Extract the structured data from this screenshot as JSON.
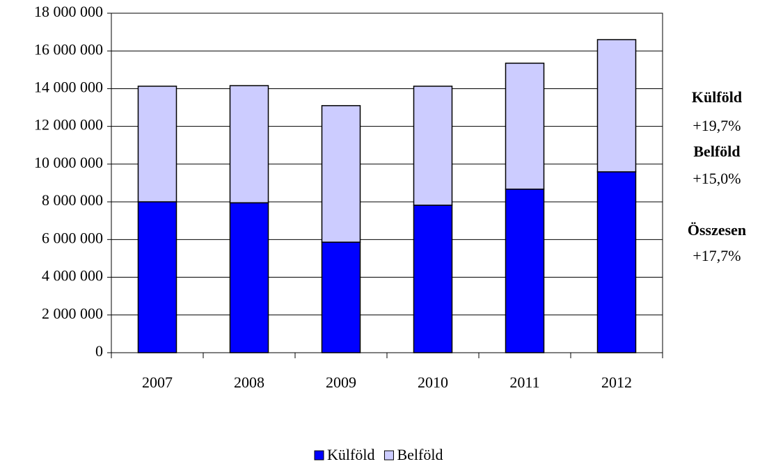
{
  "chart_data": {
    "type": "stacked_bar",
    "categories": [
      "2007",
      "2008",
      "2009",
      "2010",
      "2011",
      "2012"
    ],
    "series": [
      {
        "name": "Külföld",
        "color": "#0000ff",
        "values": [
          8000000,
          7950000,
          5860000,
          7820000,
          8670000,
          9590000
        ]
      },
      {
        "name": "Belföld",
        "color": "#ccccff",
        "values": [
          6130000,
          6210000,
          7240000,
          6310000,
          6680000,
          7010000
        ]
      }
    ],
    "ylim": [
      0,
      18000000
    ],
    "yticks": [
      0,
      {
        "value": 2000000,
        "label": "2 000 000"
      },
      {
        "value": 4000000,
        "label": "4 000 000"
      },
      {
        "value": 6000000,
        "label": "6 000 000"
      },
      {
        "value": 8000000,
        "label": "8 000 000"
      },
      {
        "value": 10000000,
        "label": "10 000 000"
      },
      {
        "value": 12000000,
        "label": "12 000 000"
      },
      {
        "value": 14000000,
        "label": "14 000 000"
      },
      {
        "value": 16000000,
        "label": "16 000 000"
      },
      {
        "value": 18000000,
        "label": "18 000 000"
      }
    ],
    "grid": true,
    "legend": "bottom",
    "annotations": [
      {
        "label": "Külföld",
        "text": "+19,7%"
      },
      {
        "label": "Belföld",
        "text": "+15,0%"
      },
      {
        "label": "Összesen",
        "text": "+17,7%"
      }
    ]
  }
}
